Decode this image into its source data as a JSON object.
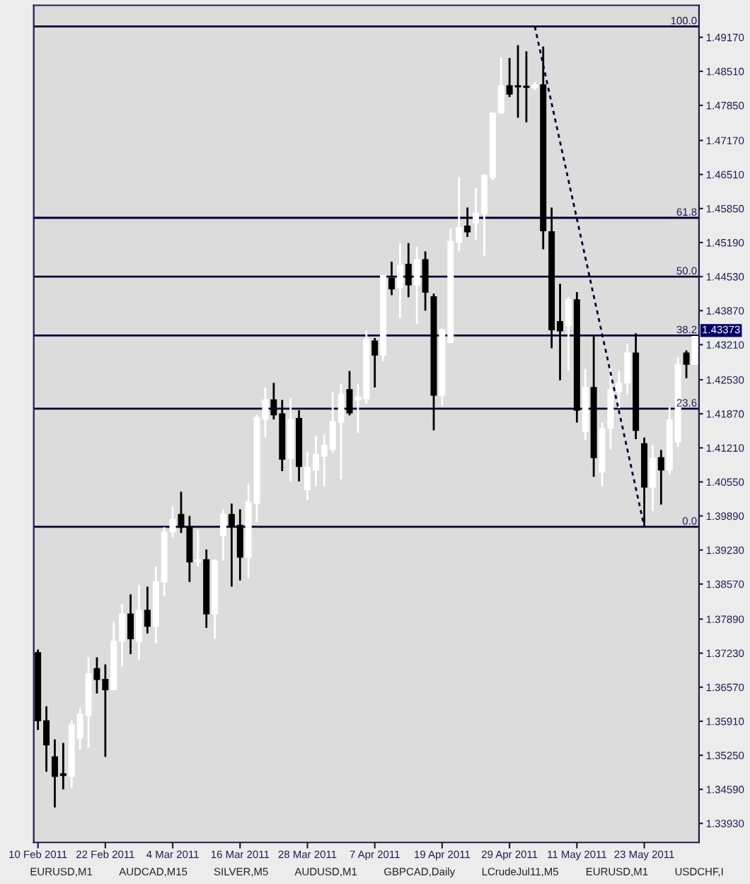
{
  "chart_data": {
    "type": "candlestick",
    "categories": [
      "10 Feb 2011",
      null,
      null,
      null,
      null,
      null,
      null,
      null,
      "22 Feb 2011",
      null,
      null,
      null,
      null,
      null,
      null,
      null,
      "4 Mar 2011",
      null,
      null,
      null,
      null,
      null,
      null,
      null,
      "16 Mar 2011",
      null,
      null,
      null,
      null,
      null,
      null,
      null,
      "28 Mar 2011",
      null,
      null,
      null,
      null,
      null,
      null,
      null,
      "7 Apr 2011",
      null,
      null,
      null,
      null,
      null,
      null,
      null,
      "19 Apr 2011",
      null,
      null,
      null,
      null,
      null,
      null,
      null,
      "29 Apr 2011",
      null,
      null,
      null,
      null,
      null,
      null,
      null,
      "11 May 2011",
      null,
      null,
      null,
      null,
      null,
      null,
      null,
      "23 May 2011",
      null,
      null,
      null,
      null,
      null,
      null
    ],
    "ohlc": [
      [
        1.3724,
        1.373,
        1.3574,
        1.3592
      ],
      [
        1.3592,
        1.362,
        1.3493,
        1.3545
      ],
      [
        1.3522,
        1.3556,
        1.3424,
        1.3484
      ],
      [
        1.3489,
        1.3549,
        1.3459,
        1.3486
      ],
      [
        1.3484,
        1.3592,
        1.3462,
        1.3584
      ],
      [
        1.3558,
        1.3617,
        1.3536,
        1.3605
      ],
      [
        1.3602,
        1.3715,
        1.354,
        1.3683
      ],
      [
        1.3693,
        1.3715,
        1.3645,
        1.3672
      ],
      [
        1.3672,
        1.3701,
        1.3522,
        1.3652
      ],
      [
        1.3652,
        1.3784,
        1.3652,
        1.3746
      ],
      [
        1.3746,
        1.3819,
        1.3697,
        1.3799
      ],
      [
        1.3799,
        1.3837,
        1.3721,
        1.3751
      ],
      [
        1.3746,
        1.3855,
        1.371,
        1.3806
      ],
      [
        1.3806,
        1.3852,
        1.3761,
        1.3775
      ],
      [
        1.3775,
        1.3891,
        1.3742,
        1.3861
      ],
      [
        1.3861,
        1.3967,
        1.3833,
        1.3958
      ],
      [
        1.3958,
        1.4007,
        1.3947,
        1.3983
      ],
      [
        1.3992,
        1.4036,
        1.3956,
        1.3967
      ],
      [
        1.3967,
        1.3989,
        1.3861,
        1.39
      ],
      [
        1.39,
        1.3962,
        1.3891,
        1.3904
      ],
      [
        1.3904,
        1.3924,
        1.3772,
        1.3799
      ],
      [
        1.3799,
        1.3905,
        1.3751,
        1.3902
      ],
      [
        1.3951,
        1.4002,
        1.3902,
        1.3992
      ],
      [
        1.3992,
        1.4013,
        1.3852,
        1.3969
      ],
      [
        1.3971,
        1.4002,
        1.3864,
        1.3909
      ],
      [
        1.3909,
        1.4052,
        1.3867,
        1.4016
      ],
      [
        1.4013,
        1.4185,
        1.3977,
        1.418
      ],
      [
        1.4176,
        1.4238,
        1.4141,
        1.4214
      ],
      [
        1.4214,
        1.4247,
        1.4176,
        1.4185
      ],
      [
        1.4187,
        1.4214,
        1.4076,
        1.4099
      ],
      [
        1.4101,
        1.4218,
        1.4056,
        1.4176
      ],
      [
        1.4178,
        1.4194,
        1.4056,
        1.4085
      ],
      [
        1.404,
        1.4114,
        1.402,
        1.4083
      ],
      [
        1.4078,
        1.4145,
        1.4047,
        1.4108
      ],
      [
        1.4105,
        1.4147,
        1.4047,
        1.4126
      ],
      [
        1.4118,
        1.4229,
        1.4111,
        1.4172
      ],
      [
        1.4171,
        1.4245,
        1.406,
        1.4225
      ],
      [
        1.4234,
        1.427,
        1.4184,
        1.4189
      ],
      [
        1.4214,
        1.4245,
        1.415,
        1.422
      ],
      [
        1.4216,
        1.4348,
        1.4207,
        1.4332
      ],
      [
        1.4328,
        1.4334,
        1.4238,
        1.4301
      ],
      [
        1.4301,
        1.4455,
        1.4289,
        1.4455
      ],
      [
        1.445,
        1.4482,
        1.4417,
        1.4429
      ],
      [
        1.4432,
        1.4518,
        1.4372,
        1.4475
      ],
      [
        1.4477,
        1.4518,
        1.4413,
        1.4437
      ],
      [
        1.4437,
        1.4511,
        1.4361,
        1.4486
      ],
      [
        1.4486,
        1.4502,
        1.4387,
        1.4423
      ],
      [
        1.4414,
        1.442,
        1.4155,
        1.4223
      ],
      [
        1.4223,
        1.4352,
        1.4203,
        1.435
      ],
      [
        1.4325,
        1.4546,
        1.4325,
        1.4521
      ],
      [
        1.452,
        1.4646,
        1.4502,
        1.4548
      ],
      [
        1.4551,
        1.4587,
        1.453,
        1.454
      ],
      [
        1.4557,
        1.4625,
        1.4524,
        1.4576
      ],
      [
        1.4575,
        1.4652,
        1.4493,
        1.4649
      ],
      [
        1.4645,
        1.477,
        1.464,
        1.477
      ],
      [
        1.477,
        1.4877,
        1.477,
        1.4823
      ],
      [
        1.4823,
        1.4877,
        1.4801,
        1.4807
      ],
      [
        1.4823,
        1.4902,
        1.4761,
        1.4821
      ],
      [
        1.4822,
        1.489,
        1.4752,
        1.482
      ],
      [
        1.4819,
        1.483,
        1.4815,
        1.4825
      ],
      [
        1.4825,
        1.4899,
        1.4506,
        1.4542
      ],
      [
        1.454,
        1.4587,
        1.4314,
        1.435
      ],
      [
        1.4366,
        1.4439,
        1.4252,
        1.4348
      ],
      [
        1.4359,
        1.4413,
        1.427,
        1.4408
      ],
      [
        1.4408,
        1.4423,
        1.417,
        1.4194
      ],
      [
        1.4153,
        1.4274,
        1.4136,
        1.4238
      ],
      [
        1.4238,
        1.4337,
        1.4065,
        1.4102
      ],
      [
        1.4074,
        1.417,
        1.4047,
        1.4158
      ],
      [
        1.4159,
        1.4279,
        1.4118,
        1.4234
      ],
      [
        1.423,
        1.427,
        1.4198,
        1.4247
      ],
      [
        1.4247,
        1.4323,
        1.4225,
        1.4305
      ],
      [
        1.4305,
        1.4343,
        1.4138,
        1.4155
      ],
      [
        1.4129,
        1.4141,
        1.3968,
        1.4045
      ],
      [
        1.4045,
        1.4127,
        1.3998,
        1.4101
      ],
      [
        1.4102,
        1.4117,
        1.4011,
        1.4078
      ],
      [
        1.4078,
        1.42,
        1.4069,
        1.4175
      ],
      [
        1.4132,
        1.4297,
        1.4123,
        1.4283
      ],
      [
        1.4305,
        1.431,
        1.4256,
        1.4283
      ],
      [
        1.4283,
        1.4337,
        1.4283,
        1.4337
      ]
    ],
    "colors": [
      "#000000",
      "#000000",
      "#000000",
      "#000000",
      "#ffffff",
      "#ffffff",
      "#ffffff",
      "#000000",
      "#000000",
      "#ffffff",
      "#ffffff",
      "#000000",
      "#ffffff",
      "#000000",
      "#ffffff",
      "#ffffff",
      "#ffffff",
      "#000000",
      "#000000",
      "#ffffff",
      "#000000",
      "#ffffff",
      "#ffffff",
      "#000000",
      "#000000",
      "#ffffff",
      "#ffffff",
      "#ffffff",
      "#000000",
      "#000000",
      "#ffffff",
      "#000000",
      "#ffffff",
      "#ffffff",
      "#ffffff",
      "#ffffff",
      "#ffffff",
      "#000000",
      "#ffffff",
      "#ffffff",
      "#000000",
      "#ffffff",
      "#000000",
      "#ffffff",
      "#000000",
      "#ffffff",
      "#000000",
      "#000000",
      "#ffffff",
      "#ffffff",
      "#ffffff",
      "#000000",
      "#ffffff",
      "#ffffff",
      "#ffffff",
      "#ffffff",
      "#000000",
      "#000000",
      "#000000",
      "#ffffff",
      "#000000",
      "#000000",
      "#000000",
      "#ffffff",
      "#000000",
      "#ffffff",
      "#000000",
      "#ffffff",
      "#ffffff",
      "#ffffff",
      "#ffffff",
      "#000000",
      "#000000",
      "#ffffff",
      "#000000",
      "#ffffff",
      "#ffffff",
      "#000000",
      "#ffffff"
    ],
    "series": [
      {
        "type": "line",
        "values": [
          null,
          null,
          null,
          null,
          null,
          null,
          null,
          null,
          null,
          null,
          null,
          null,
          null,
          null,
          null,
          null,
          null,
          null,
          null,
          null,
          null,
          null,
          null,
          null,
          null,
          null,
          null,
          null,
          null,
          null,
          null,
          null,
          null,
          null,
          null,
          null,
          null,
          null,
          null,
          null,
          null,
          null,
          null,
          null,
          null,
          null,
          null,
          null,
          null,
          null,
          null,
          null,
          null,
          null,
          null,
          null,
          null,
          null,
          null,
          1.4938,
          null,
          null,
          null,
          null,
          null,
          null,
          null,
          null,
          null,
          null,
          null,
          null,
          1.3968,
          null,
          null,
          null,
          null,
          null,
          null
        ],
        "color": "#000033",
        "line_style": "dotted"
      }
    ],
    "ylim": [
      1.3356,
      1.4979
    ],
    "yticks": [
      {
        "value": 1.4917,
        "label": "1.49170"
      },
      {
        "value": 1.4851,
        "label": "1.48510"
      },
      {
        "value": 1.4785,
        "label": "1.47850"
      },
      {
        "value": 1.4717,
        "label": "1.47170"
      },
      {
        "value": 1.4651,
        "label": "1.46510"
      },
      {
        "value": 1.4585,
        "label": "1.45850"
      },
      {
        "value": 1.4519,
        "label": "1.45190"
      },
      {
        "value": 1.4453,
        "label": "1.44530"
      },
      {
        "value": 1.4387,
        "label": "1.43870"
      },
      {
        "value": 1.4321,
        "label": "1.43210"
      },
      {
        "value": 1.4253,
        "label": "1.42530"
      },
      {
        "value": 1.4187,
        "label": "1.41870"
      },
      {
        "value": 1.4121,
        "label": "1.41210"
      },
      {
        "value": 1.4055,
        "label": "1.40550"
      },
      {
        "value": 1.3989,
        "label": "1.39890"
      },
      {
        "value": 1.3923,
        "label": "1.39230"
      },
      {
        "value": 1.3857,
        "label": "1.38570"
      },
      {
        "value": 1.3789,
        "label": "1.37890"
      },
      {
        "value": 1.3723,
        "label": "1.37230"
      },
      {
        "value": 1.3657,
        "label": "1.36570"
      },
      {
        "value": 1.3591,
        "label": "1.35910"
      },
      {
        "value": 1.3525,
        "label": "1.35250"
      },
      {
        "value": 1.3459,
        "label": "1.34590"
      },
      {
        "value": 1.3393,
        "label": "1.33930"
      }
    ],
    "ref_lines": [
      {
        "axis": "y",
        "value": 1.4938,
        "color": "#000033"
      },
      {
        "axis": "y",
        "value": 1.4567,
        "color": "#000033"
      },
      {
        "axis": "y",
        "value": 1.4453,
        "color": "#000033"
      },
      {
        "axis": "y",
        "value": 1.4339,
        "color": "#000033"
      },
      {
        "axis": "y",
        "value": 1.4197,
        "color": "#000033"
      },
      {
        "axis": "y",
        "value": 1.3968,
        "color": "#000033"
      }
    ],
    "annotations": [
      "1.43373",
      {
        "text": "100.0",
        "y": 1.4938
      },
      {
        "text": "61.8",
        "y": 1.4567
      },
      {
        "text": "50.0",
        "y": 1.4453
      },
      {
        "text": "38.2",
        "y": 1.4339
      },
      {
        "text": "23.6",
        "y": 1.4197
      },
      {
        "text": "0.0",
        "y": 1.3968
      },
      "EURUSD,M1",
      "AUDCAD,M15",
      "SILVER,M5",
      "AUDUSD,M1",
      "GBPCAD,Daily",
      "LCrudeJul11,M5",
      "EURUSD,M1",
      "USDCHF,I"
    ],
    "grid": false,
    "legend": false
  }
}
